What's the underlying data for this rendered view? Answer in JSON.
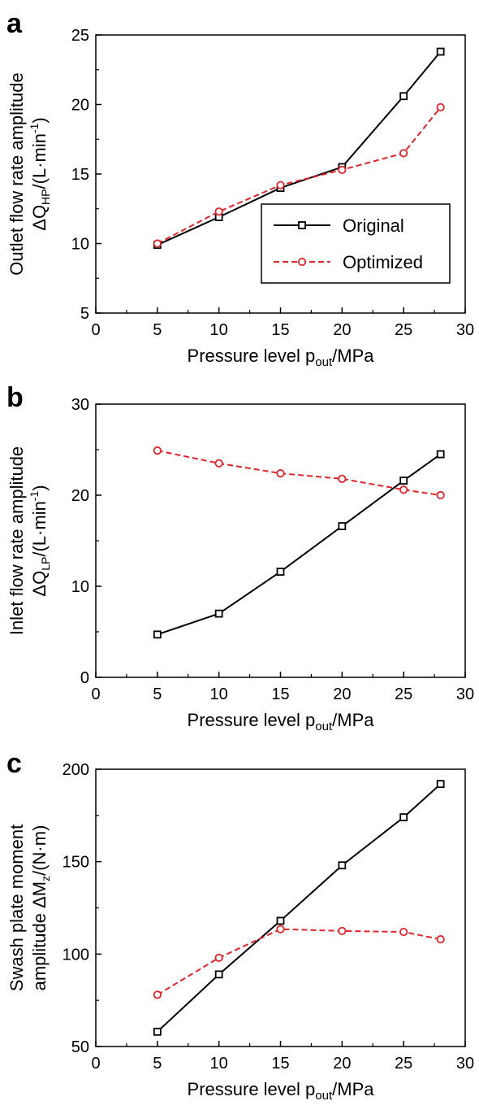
{
  "chart_data": [
    {
      "type": "line",
      "panel": "a",
      "x": [
        5,
        10,
        15,
        20,
        25,
        28
      ],
      "series": [
        {
          "name": "Original",
          "values": [
            9.9,
            11.9,
            14.0,
            15.5,
            20.6,
            23.8
          ],
          "color": "#000000",
          "marker": "square",
          "line": "solid"
        },
        {
          "name": "Optimized",
          "values": [
            10.0,
            12.3,
            14.2,
            15.3,
            16.5,
            19.8
          ],
          "color": "#e0242a",
          "marker": "circle",
          "line": "dashed"
        }
      ],
      "xlabel": {
        "text": "Pressure level p",
        "sub": "out",
        "suffix": "/MPa"
      },
      "ylabel": {
        "line1": "Outlet flow rate amplitude",
        "line2_prefix": "ΔQ",
        "line2_sub": "HP",
        "line2_mid": "/(L",
        "line2_dot": "·",
        "line2_unit": "min",
        "line2_sup": "-1",
        "line2_end": ")"
      },
      "xlim": [
        0,
        30
      ],
      "ylim": [
        5,
        25
      ],
      "xticks": [
        0,
        5,
        10,
        15,
        20,
        25,
        30
      ],
      "yticks": [
        5,
        10,
        15,
        20,
        25
      ],
      "legend": "center-right",
      "grid": false
    },
    {
      "type": "line",
      "panel": "b",
      "x": [
        5,
        10,
        15,
        20,
        25,
        28
      ],
      "series": [
        {
          "name": "Original",
          "values": [
            4.7,
            7.0,
            11.6,
            16.6,
            21.6,
            24.5
          ],
          "color": "#000000",
          "marker": "square",
          "line": "solid"
        },
        {
          "name": "Optimized",
          "values": [
            24.9,
            23.5,
            22.4,
            21.8,
            20.6,
            20.0
          ],
          "color": "#e0242a",
          "marker": "circle",
          "line": "dashed"
        }
      ],
      "xlabel": {
        "text": "Pressure level p",
        "sub": "out",
        "suffix": "/MPa"
      },
      "ylabel": {
        "line1": "Inlet flow rate amplitude",
        "line2_prefix": "ΔQ",
        "line2_sub": "LP",
        "line2_mid": "/(L",
        "line2_dot": "·",
        "line2_unit": "min",
        "line2_sup": "-1",
        "line2_end": ")"
      },
      "xlim": [
        0,
        30
      ],
      "ylim": [
        0,
        30
      ],
      "xticks": [
        0,
        5,
        10,
        15,
        20,
        25,
        30
      ],
      "yticks": [
        0,
        10,
        20,
        30
      ],
      "grid": false
    },
    {
      "type": "line",
      "panel": "c",
      "x": [
        5,
        10,
        15,
        20,
        25,
        28
      ],
      "series": [
        {
          "name": "Original",
          "values": [
            58,
            89,
            118,
            148,
            174,
            192
          ],
          "color": "#000000",
          "marker": "square",
          "line": "solid"
        },
        {
          "name": "Optimized",
          "values": [
            78,
            98,
            113.5,
            112.5,
            112,
            108
          ],
          "color": "#e0242a",
          "marker": "circle",
          "line": "dashed"
        }
      ],
      "xlabel": {
        "text": "Pressure level p",
        "sub": "out",
        "suffix": "/MPa"
      },
      "ylabel": {
        "line1": "Swash plate moment",
        "line2_prefix": "amplitude ΔM",
        "line2_sub": "z",
        "line2_mid": "/(N",
        "line2_dot": "·",
        "line2_unit": "m",
        "line2_sup": "",
        "line2_end": ")"
      },
      "xlim": [
        0,
        30
      ],
      "ylim": [
        50,
        200
      ],
      "xticks": [
        0,
        5,
        10,
        15,
        20,
        25,
        30
      ],
      "yticks": [
        50,
        100,
        150,
        200
      ],
      "grid": false
    }
  ]
}
